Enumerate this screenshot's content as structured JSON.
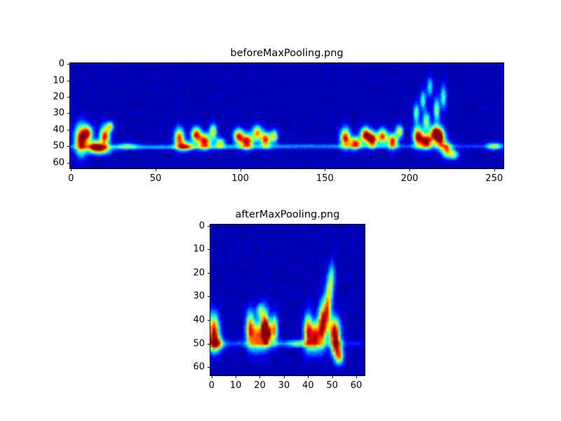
{
  "figure": {
    "background": "#ffffff",
    "axes_color": "#000000",
    "colormap": "jet",
    "colormap_low_color": "#000080",
    "colormap_high_color": "#800000"
  },
  "chart_data": [
    {
      "type": "heatmap",
      "title": "beforeMaxPooling.png",
      "xlabel": "",
      "ylabel": "",
      "x_ticks": [
        0,
        50,
        100,
        150,
        200,
        250
      ],
      "y_ticks": [
        0,
        10,
        20,
        30,
        40,
        50,
        60
      ],
      "x_range": [
        0,
        256
      ],
      "y_range": [
        0,
        64
      ],
      "grid": false,
      "legend": "none",
      "description": "Spectrogram-like activation map, dark blue background with bright green/yellow/red energy concentrated in a horizontal band around rows 38-55, clustered near x=3-25, 60-90, 95-125, 158-222, with diagonal streaks rising near x=200-220 and a faint horizontal line near row 50.",
      "noise": {
        "base": 0.025,
        "amp": 0.055,
        "seed": 7
      },
      "blobs": [
        [
          6,
          46,
          2.5,
          6,
          0.95
        ],
        [
          10,
          42,
          2,
          3,
          0.7
        ],
        [
          14,
          50,
          3,
          2.5,
          0.75
        ],
        [
          20,
          44,
          2,
          4,
          0.85
        ],
        [
          23,
          38,
          1.5,
          2,
          0.55
        ],
        [
          18,
          52,
          4,
          2,
          0.55
        ],
        [
          33,
          50,
          4,
          1.5,
          0.3
        ],
        [
          64,
          45,
          2,
          4,
          0.8
        ],
        [
          68,
          50,
          3,
          2,
          0.6
        ],
        [
          74,
          43,
          2,
          3,
          0.85
        ],
        [
          79,
          47,
          2.5,
          3,
          0.9
        ],
        [
          84,
          41,
          1.5,
          3,
          0.6
        ],
        [
          88,
          48,
          2,
          2,
          0.55
        ],
        [
          99,
          44,
          2,
          3,
          0.8
        ],
        [
          104,
          47,
          2.5,
          3,
          0.9
        ],
        [
          110,
          42,
          2,
          3,
          0.7
        ],
        [
          115,
          46,
          2,
          3,
          0.85
        ],
        [
          120,
          44,
          1.5,
          2.5,
          0.6
        ],
        [
          162,
          45,
          2,
          4,
          0.85
        ],
        [
          168,
          48,
          2.5,
          2.5,
          0.8
        ],
        [
          174,
          43,
          2,
          3,
          0.9
        ],
        [
          178,
          46,
          2,
          3,
          1.0
        ],
        [
          184,
          44,
          2,
          3,
          0.8
        ],
        [
          190,
          47,
          2,
          3,
          0.85
        ],
        [
          194,
          41,
          1.5,
          2.5,
          0.6
        ],
        [
          205,
          44,
          2,
          4,
          0.9
        ],
        [
          210,
          47,
          2.5,
          3,
          0.95
        ],
        [
          215,
          42,
          2,
          3,
          0.9
        ],
        [
          218,
          45,
          2,
          4,
          1.0
        ],
        [
          204,
          30,
          1.2,
          4,
          0.45
        ],
        [
          208,
          22,
          1.2,
          4,
          0.4
        ],
        [
          212,
          14,
          1.2,
          4,
          0.35
        ],
        [
          216,
          28,
          1.2,
          5,
          0.5
        ],
        [
          220,
          20,
          1.2,
          5,
          0.4
        ],
        [
          210,
          35,
          1.5,
          4,
          0.5
        ],
        [
          222,
          52,
          2,
          3,
          0.7
        ],
        [
          226,
          55,
          2,
          2,
          0.5
        ],
        [
          250,
          50,
          3,
          1.5,
          0.45
        ],
        [
          128,
          50,
          110,
          0.9,
          0.22
        ],
        [
          60,
          51,
          40,
          0.7,
          0.15
        ]
      ]
    },
    {
      "type": "heatmap",
      "title": "afterMaxPooling.png",
      "xlabel": "",
      "ylabel": "",
      "x_ticks": [
        0,
        10,
        20,
        30,
        40,
        50,
        60
      ],
      "y_ticks": [
        0,
        10,
        20,
        30,
        40,
        50,
        60
      ],
      "x_range": [
        0,
        64
      ],
      "y_range": [
        0,
        64
      ],
      "grid": false,
      "legend": "none",
      "description": "Max-pooled version of the map above: dark blue background with bright vertical streak clusters around x=0-3, 15-27 and 38-55 in the row band 35-56, one streak rising to about row 21 near x=50, faint horizontal line near row 50.",
      "noise": {
        "base": 0.025,
        "amp": 0.055,
        "seed": 13
      },
      "blobs": [
        [
          1,
          45,
          1.5,
          5,
          0.9
        ],
        [
          2,
          50,
          2,
          2,
          0.6
        ],
        [
          16,
          44,
          1.2,
          5,
          0.8
        ],
        [
          19,
          47,
          1.5,
          4,
          0.7
        ],
        [
          22,
          43,
          1.2,
          5,
          0.9
        ],
        [
          23,
          46,
          1.2,
          3,
          1.0
        ],
        [
          26,
          44,
          1,
          4,
          0.7
        ],
        [
          20,
          36,
          1,
          2,
          0.4
        ],
        [
          36,
          50,
          3,
          1,
          0.3
        ],
        [
          40,
          45,
          1.2,
          5,
          0.8
        ],
        [
          43,
          47,
          1.5,
          4,
          0.85
        ],
        [
          46,
          42,
          1.2,
          6,
          0.9
        ],
        [
          48,
          36,
          1,
          5,
          0.65
        ],
        [
          49,
          27,
          1,
          5,
          0.45
        ],
        [
          50,
          21,
          0.8,
          4,
          0.3
        ],
        [
          51,
          45,
          1.5,
          4,
          0.95
        ],
        [
          52,
          52,
          1.5,
          3,
          0.7
        ],
        [
          53,
          56,
          1.2,
          2,
          0.5
        ],
        [
          28,
          50,
          26,
          0.9,
          0.2
        ]
      ]
    }
  ]
}
